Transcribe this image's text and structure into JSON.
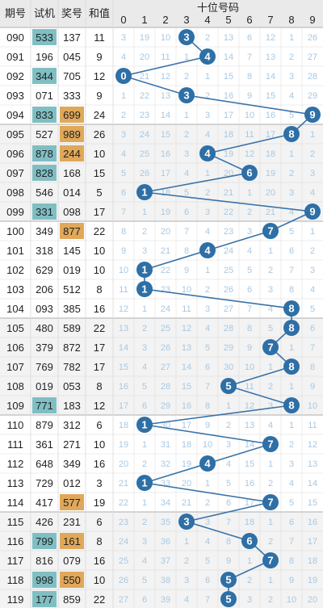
{
  "header": {
    "period": "期号",
    "trial": "试机",
    "prize": "奖号",
    "sum": "和值",
    "group_title": "十位号码",
    "digits": [
      "0",
      "1",
      "2",
      "3",
      "4",
      "5",
      "6",
      "7",
      "8",
      "9"
    ]
  },
  "colors": {
    "header_bg": "#eaeaea",
    "row_bg_alt": "#f3f3f3",
    "trial_highlight": "#7fbfc4",
    "prize_highlight": "#e0a85a",
    "ball": "#2e6fa6",
    "line": "#3a73a8",
    "missing_text": "#a8c8e2",
    "grid_line": "#d9d9d9",
    "group_separator": "#bdbdbd"
  },
  "chart_data": {
    "type": "table",
    "title": "十位号码",
    "columns": [
      "期号",
      "试机",
      "奖号",
      "和值",
      "0",
      "1",
      "2",
      "3",
      "4",
      "5",
      "6",
      "7",
      "8",
      "9"
    ],
    "rows": [
      {
        "period": "090",
        "trial": "533",
        "trial_hl": true,
        "prize": "137",
        "prize_hl": false,
        "sum": "11",
        "tens": 3,
        "miss": [
          3,
          19,
          10,
          null,
          2,
          13,
          6,
          12,
          1,
          26
        ]
      },
      {
        "period": "091",
        "trial": "196",
        "trial_hl": false,
        "prize": "045",
        "prize_hl": false,
        "sum": "9",
        "tens": 4,
        "miss": [
          4,
          20,
          11,
          1,
          null,
          14,
          7,
          13,
          2,
          27
        ]
      },
      {
        "period": "092",
        "trial": "344",
        "trial_hl": true,
        "prize": "705",
        "prize_hl": false,
        "sum": "12",
        "tens": 0,
        "miss": [
          null,
          21,
          12,
          2,
          1,
          15,
          8,
          14,
          3,
          28
        ]
      },
      {
        "period": "093",
        "trial": "071",
        "trial_hl": false,
        "prize": "333",
        "prize_hl": false,
        "sum": "9",
        "tens": 3,
        "miss": [
          1,
          22,
          13,
          null,
          2,
          16,
          9,
          15,
          4,
          29
        ]
      },
      {
        "period": "094",
        "trial": "833",
        "trial_hl": true,
        "prize": "699",
        "prize_hl": true,
        "sum": "24",
        "tens": 9,
        "miss": [
          2,
          23,
          14,
          1,
          3,
          17,
          10,
          16,
          5,
          null
        ]
      },
      {
        "period": "095",
        "trial": "527",
        "trial_hl": false,
        "prize": "989",
        "prize_hl": true,
        "sum": "26",
        "tens": 8,
        "miss": [
          3,
          24,
          15,
          2,
          4,
          18,
          11,
          17,
          null,
          1
        ]
      },
      {
        "period": "096",
        "trial": "878",
        "trial_hl": true,
        "prize": "244",
        "prize_hl": true,
        "sum": "10",
        "tens": 4,
        "miss": [
          4,
          25,
          16,
          3,
          null,
          19,
          12,
          18,
          1,
          2
        ]
      },
      {
        "period": "097",
        "trial": "828",
        "trial_hl": true,
        "prize": "168",
        "prize_hl": false,
        "sum": "15",
        "tens": 6,
        "miss": [
          5,
          26,
          17,
          4,
          1,
          20,
          null,
          19,
          2,
          3
        ]
      },
      {
        "period": "098",
        "trial": "546",
        "trial_hl": false,
        "prize": "014",
        "prize_hl": false,
        "sum": "5",
        "tens": 1,
        "miss": [
          6,
          null,
          18,
          5,
          2,
          21,
          1,
          20,
          3,
          4
        ]
      },
      {
        "period": "099",
        "trial": "331",
        "trial_hl": true,
        "prize": "098",
        "prize_hl": false,
        "sum": "17",
        "tens": 9,
        "miss": [
          7,
          1,
          19,
          6,
          3,
          22,
          2,
          21,
          4,
          null
        ]
      },
      {
        "period": "100",
        "trial": "349",
        "trial_hl": false,
        "prize": "877",
        "prize_hl": true,
        "sum": "22",
        "tens": 7,
        "miss": [
          8,
          2,
          20,
          7,
          4,
          23,
          3,
          null,
          5,
          1
        ]
      },
      {
        "period": "101",
        "trial": "318",
        "trial_hl": false,
        "prize": "145",
        "prize_hl": false,
        "sum": "10",
        "tens": 4,
        "miss": [
          9,
          3,
          21,
          8,
          null,
          24,
          4,
          1,
          6,
          2
        ]
      },
      {
        "period": "102",
        "trial": "629",
        "trial_hl": false,
        "prize": "019",
        "prize_hl": false,
        "sum": "10",
        "tens": 1,
        "miss": [
          10,
          null,
          22,
          9,
          1,
          25,
          5,
          2,
          7,
          3
        ]
      },
      {
        "period": "103",
        "trial": "206",
        "trial_hl": false,
        "prize": "512",
        "prize_hl": false,
        "sum": "8",
        "tens": 1,
        "miss": [
          11,
          null,
          23,
          10,
          2,
          26,
          6,
          3,
          8,
          4
        ]
      },
      {
        "period": "104",
        "trial": "093",
        "trial_hl": false,
        "prize": "385",
        "prize_hl": false,
        "sum": "16",
        "tens": 8,
        "miss": [
          12,
          1,
          24,
          11,
          3,
          27,
          7,
          4,
          null,
          5
        ]
      },
      {
        "period": "105",
        "trial": "480",
        "trial_hl": false,
        "prize": "589",
        "prize_hl": false,
        "sum": "22",
        "tens": 8,
        "miss": [
          13,
          2,
          25,
          12,
          4,
          28,
          8,
          5,
          null,
          6
        ]
      },
      {
        "period": "106",
        "trial": "379",
        "trial_hl": false,
        "prize": "872",
        "prize_hl": false,
        "sum": "17",
        "tens": 7,
        "miss": [
          14,
          3,
          26,
          13,
          5,
          29,
          9,
          null,
          1,
          7
        ]
      },
      {
        "period": "107",
        "trial": "769",
        "trial_hl": false,
        "prize": "782",
        "prize_hl": false,
        "sum": "17",
        "tens": 8,
        "miss": [
          15,
          4,
          27,
          14,
          6,
          30,
          10,
          1,
          null,
          8
        ]
      },
      {
        "period": "108",
        "trial": "019",
        "trial_hl": false,
        "prize": "053",
        "prize_hl": false,
        "sum": "8",
        "tens": 5,
        "miss": [
          16,
          5,
          28,
          15,
          7,
          null,
          11,
          2,
          1,
          9
        ]
      },
      {
        "period": "109",
        "trial": "771",
        "trial_hl": true,
        "prize": "183",
        "prize_hl": false,
        "sum": "12",
        "tens": 8,
        "miss": [
          17,
          6,
          29,
          16,
          8,
          1,
          12,
          3,
          null,
          10
        ]
      },
      {
        "period": "110",
        "trial": "879",
        "trial_hl": false,
        "prize": "312",
        "prize_hl": false,
        "sum": "6",
        "tens": 1,
        "miss": [
          18,
          null,
          30,
          17,
          9,
          2,
          13,
          4,
          1,
          11
        ]
      },
      {
        "period": "111",
        "trial": "361",
        "trial_hl": false,
        "prize": "271",
        "prize_hl": false,
        "sum": "10",
        "tens": 7,
        "miss": [
          19,
          1,
          31,
          18,
          10,
          3,
          14,
          null,
          2,
          12
        ]
      },
      {
        "period": "112",
        "trial": "648",
        "trial_hl": false,
        "prize": "349",
        "prize_hl": false,
        "sum": "16",
        "tens": 4,
        "miss": [
          20,
          2,
          32,
          19,
          null,
          4,
          15,
          1,
          3,
          13
        ]
      },
      {
        "period": "113",
        "trial": "729",
        "trial_hl": false,
        "prize": "012",
        "prize_hl": false,
        "sum": "3",
        "tens": 1,
        "miss": [
          21,
          null,
          33,
          20,
          1,
          5,
          16,
          2,
          4,
          14
        ]
      },
      {
        "period": "114",
        "trial": "417",
        "trial_hl": false,
        "prize": "577",
        "prize_hl": true,
        "sum": "19",
        "tens": 7,
        "miss": [
          22,
          1,
          34,
          21,
          2,
          6,
          17,
          null,
          5,
          15
        ]
      },
      {
        "period": "115",
        "trial": "426",
        "trial_hl": false,
        "prize": "231",
        "prize_hl": false,
        "sum": "6",
        "tens": 3,
        "miss": [
          23,
          2,
          35,
          null,
          3,
          7,
          18,
          1,
          6,
          16
        ]
      },
      {
        "period": "116",
        "trial": "799",
        "trial_hl": true,
        "prize": "161",
        "prize_hl": true,
        "sum": "8",
        "tens": 6,
        "miss": [
          24,
          3,
          36,
          1,
          4,
          8,
          null,
          2,
          7,
          17
        ]
      },
      {
        "period": "117",
        "trial": "816",
        "trial_hl": false,
        "prize": "079",
        "prize_hl": false,
        "sum": "16",
        "tens": 7,
        "miss": [
          25,
          4,
          37,
          2,
          5,
          9,
          1,
          null,
          8,
          18
        ]
      },
      {
        "period": "118",
        "trial": "998",
        "trial_hl": true,
        "prize": "550",
        "prize_hl": true,
        "sum": "10",
        "tens": 5,
        "miss": [
          26,
          5,
          38,
          3,
          6,
          null,
          2,
          1,
          9,
          19
        ]
      },
      {
        "period": "119",
        "trial": "177",
        "trial_hl": true,
        "prize": "859",
        "prize_hl": false,
        "sum": "22",
        "tens": 5,
        "miss": [
          27,
          6,
          39,
          4,
          7,
          null,
          3,
          2,
          10,
          20
        ]
      }
    ]
  }
}
